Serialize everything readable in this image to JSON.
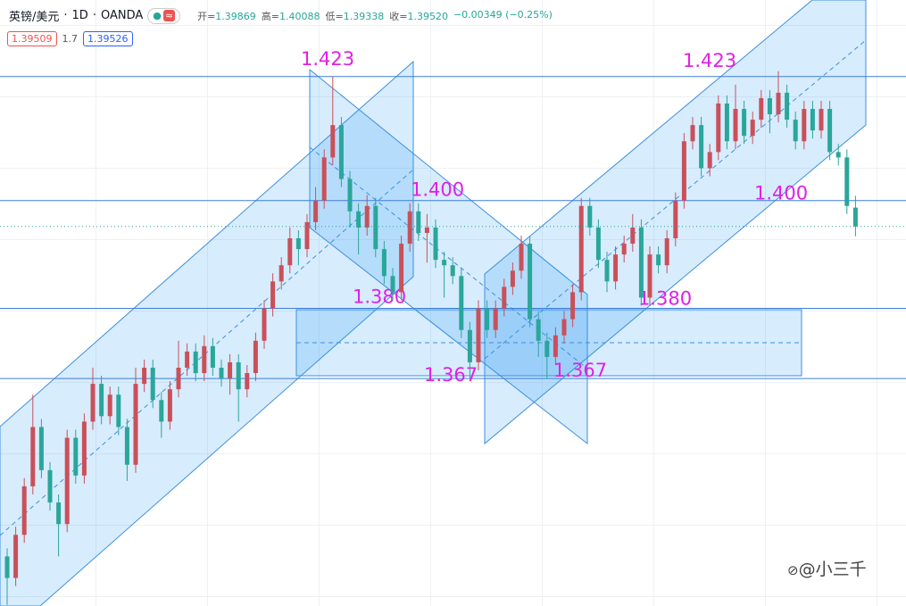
{
  "header": {
    "symbol": "英镑/美元",
    "interval": "1D",
    "source": "OANDA",
    "ohlc": [
      {
        "label": "开=",
        "value": "1.39869"
      },
      {
        "label": "高=",
        "value": "1.40088"
      },
      {
        "label": "低=",
        "value": "1.39338"
      },
      {
        "label": "收=",
        "value": "1.39520"
      }
    ],
    "change": "−0.00349 (−0.25%)",
    "sell": "1.39509",
    "spread": "1.7",
    "buy": "1.39526"
  },
  "watermark": "@小三千",
  "chart_data": {
    "type": "candlestick",
    "ylim": [
      1.3248,
      1.4372
    ],
    "up_color": "#c9505a",
    "down_color": "#2aa69a",
    "last_price_line": true,
    "levels": [
      {
        "value": 1.423,
        "label": "1.423"
      },
      {
        "value": 1.4,
        "label": "1.400"
      },
      {
        "value": 1.38,
        "label": "1.380"
      },
      {
        "value": 1.367,
        "label": "1.367"
      }
    ],
    "open": [
      1.334,
      1.33,
      1.338,
      1.347,
      1.358,
      1.35,
      1.344,
      1.34,
      1.356,
      1.349,
      1.359,
      1.366,
      1.36,
      1.364,
      1.358,
      1.351,
      1.366,
      1.369,
      1.363,
      1.359,
      1.365,
      1.369,
      1.372,
      1.368,
      1.373,
      1.369,
      1.367,
      1.37,
      1.365,
      1.368,
      1.374,
      1.38,
      1.385,
      1.388,
      1.393,
      1.391,
      1.396,
      1.4,
      1.408,
      1.414,
      1.404,
      1.398,
      1.395,
      1.399,
      1.391,
      1.386,
      1.383,
      1.392,
      1.398,
      1.394,
      1.395,
      1.389,
      1.388,
      1.386,
      1.376,
      1.37,
      1.38,
      1.376,
      1.38,
      1.384,
      1.387,
      1.392,
      1.378,
      1.374,
      1.371,
      1.375,
      1.378,
      1.383,
      1.399,
      1.395,
      1.389,
      1.385,
      1.39,
      1.392,
      1.395,
      1.382,
      1.39,
      1.388,
      1.393,
      1.4,
      1.411,
      1.414,
      1.406,
      1.409,
      1.418,
      1.411,
      1.417,
      1.412,
      1.415,
      1.419,
      1.416,
      1.42,
      1.415,
      1.411,
      1.417,
      1.413,
      1.417,
      1.409,
      1.408,
      1.39869
    ],
    "high": [
      1.3355,
      1.3395,
      1.3485,
      1.364,
      1.3595,
      1.3515,
      1.3455,
      1.3575,
      1.3575,
      1.3605,
      1.369,
      1.3675,
      1.3655,
      1.3655,
      1.3595,
      1.369,
      1.3705,
      1.3705,
      1.3645,
      1.3665,
      1.374,
      1.3735,
      1.3735,
      1.375,
      1.3745,
      1.3705,
      1.3715,
      1.3715,
      1.3695,
      1.3755,
      1.3815,
      1.3865,
      1.3895,
      1.395,
      1.3945,
      1.3975,
      1.4025,
      1.4095,
      1.423,
      1.4155,
      1.4055,
      1.3995,
      1.401,
      1.4005,
      1.3925,
      1.3875,
      1.3935,
      1.3995,
      1.3995,
      1.3975,
      1.3965,
      1.3905,
      1.3895,
      1.3875,
      1.3775,
      1.3815,
      1.3815,
      1.3815,
      1.3855,
      1.3885,
      1.3935,
      1.3935,
      1.3795,
      1.3755,
      1.3765,
      1.3795,
      1.3845,
      1.4005,
      1.4005,
      1.3965,
      1.3905,
      1.3915,
      1.3935,
      1.3975,
      1.3965,
      1.3915,
      1.3915,
      1.3945,
      1.4015,
      1.4125,
      1.4155,
      1.4155,
      1.4105,
      1.4195,
      1.4195,
      1.4215,
      1.4185,
      1.4165,
      1.4205,
      1.4205,
      1.424,
      1.4215,
      1.4165,
      1.4185,
      1.4185,
      1.4185,
      1.4185,
      1.4105,
      1.4095,
      1.40088
    ],
    "low": [
      1.325,
      1.3285,
      1.3365,
      1.3455,
      1.3485,
      1.3425,
      1.334,
      1.3385,
      1.3475,
      1.3475,
      1.3575,
      1.3585,
      1.3585,
      1.3565,
      1.348,
      1.3495,
      1.3645,
      1.3615,
      1.356,
      1.3575,
      1.3635,
      1.3675,
      1.3665,
      1.3665,
      1.3675,
      1.3655,
      1.364,
      1.359,
      1.3635,
      1.3665,
      1.3725,
      1.3785,
      1.3835,
      1.3865,
      1.388,
      1.3895,
      1.3945,
      1.3985,
      1.4065,
      1.4025,
      1.395,
      1.39,
      1.3935,
      1.3895,
      1.3845,
      1.3815,
      1.3815,
      1.3905,
      1.3925,
      1.3885,
      1.3875,
      1.382,
      1.3845,
      1.3745,
      1.367,
      1.3685,
      1.3745,
      1.3745,
      1.3785,
      1.3825,
      1.3855,
      1.3765,
      1.371,
      1.367,
      1.3695,
      1.3735,
      1.3765,
      1.3815,
      1.3935,
      1.3875,
      1.383,
      1.3835,
      1.3885,
      1.3905,
      1.3805,
      1.3805,
      1.3865,
      1.3865,
      1.3915,
      1.3985,
      1.4095,
      1.4045,
      1.4045,
      1.4075,
      1.4095,
      1.4095,
      1.4105,
      1.4105,
      1.4135,
      1.4125,
      1.4145,
      1.4135,
      1.4095,
      1.4095,
      1.4115,
      1.4115,
      1.4075,
      1.4065,
      1.3975,
      1.39338
    ],
    "close": [
      1.33,
      1.338,
      1.347,
      1.358,
      1.35,
      1.344,
      1.34,
      1.356,
      1.349,
      1.359,
      1.366,
      1.36,
      1.364,
      1.358,
      1.351,
      1.366,
      1.369,
      1.363,
      1.359,
      1.365,
      1.369,
      1.372,
      1.368,
      1.373,
      1.369,
      1.367,
      1.37,
      1.365,
      1.368,
      1.374,
      1.38,
      1.385,
      1.388,
      1.393,
      1.391,
      1.396,
      1.4,
      1.408,
      1.414,
      1.404,
      1.398,
      1.395,
      1.399,
      1.391,
      1.386,
      1.383,
      1.392,
      1.398,
      1.394,
      1.395,
      1.389,
      1.388,
      1.386,
      1.376,
      1.37,
      1.38,
      1.376,
      1.38,
      1.384,
      1.387,
      1.392,
      1.378,
      1.374,
      1.371,
      1.375,
      1.378,
      1.383,
      1.399,
      1.395,
      1.389,
      1.385,
      1.39,
      1.392,
      1.395,
      1.382,
      1.39,
      1.388,
      1.393,
      1.4,
      1.411,
      1.414,
      1.406,
      1.409,
      1.418,
      1.411,
      1.417,
      1.412,
      1.415,
      1.419,
      1.416,
      1.42,
      1.415,
      1.411,
      1.417,
      1.413,
      1.417,
      1.409,
      1.408,
      1.399,
      1.3952
    ]
  }
}
